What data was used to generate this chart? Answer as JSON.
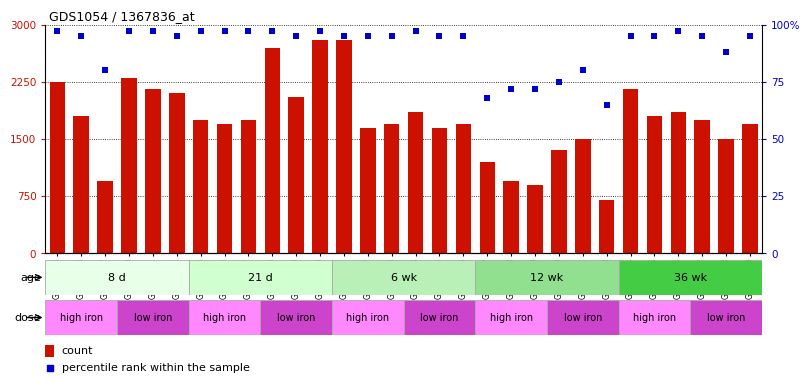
{
  "title": "GDS1054 / 1367836_at",
  "samples": [
    "GSM33513",
    "GSM33515",
    "GSM33517",
    "GSM33519",
    "GSM33521",
    "GSM33524",
    "GSM33525",
    "GSM33526",
    "GSM33527",
    "GSM33528",
    "GSM33529",
    "GSM33530",
    "GSM33531",
    "GSM33532",
    "GSM33533",
    "GSM33534",
    "GSM33535",
    "GSM33536",
    "GSM33537",
    "GSM33538",
    "GSM33539",
    "GSM33540",
    "GSM33541",
    "GSM33543",
    "GSM33544",
    "GSM33545",
    "GSM33546",
    "GSM33547",
    "GSM33548",
    "GSM33549"
  ],
  "counts": [
    2250,
    1800,
    950,
    2300,
    2150,
    2100,
    1750,
    1700,
    1750,
    2700,
    2050,
    2800,
    2800,
    1650,
    1700,
    1850,
    1650,
    1700,
    1200,
    950,
    900,
    1350,
    1500,
    700,
    2150,
    1800,
    1850,
    1750,
    1500,
    1700
  ],
  "percentiles": [
    97,
    95,
    80,
    97,
    97,
    95,
    97,
    97,
    97,
    97,
    95,
    97,
    95,
    95,
    95,
    97,
    95,
    95,
    68,
    72,
    72,
    75,
    80,
    65,
    95,
    95,
    97,
    95,
    88,
    95
  ],
  "age_groups": [
    {
      "label": "8 d",
      "start": 0,
      "end": 6
    },
    {
      "label": "21 d",
      "start": 6,
      "end": 12
    },
    {
      "label": "6 wk",
      "start": 12,
      "end": 18
    },
    {
      "label": "12 wk",
      "start": 18,
      "end": 24
    },
    {
      "label": "36 wk",
      "start": 24,
      "end": 30
    }
  ],
  "age_colors": [
    "#e8ffe8",
    "#d0ffd0",
    "#b8f0b8",
    "#90e090",
    "#44cc44"
  ],
  "dose_groups": [
    {
      "label": "high iron",
      "start": 0,
      "end": 3
    },
    {
      "label": "low iron",
      "start": 3,
      "end": 6
    },
    {
      "label": "high iron",
      "start": 6,
      "end": 9
    },
    {
      "label": "low iron",
      "start": 9,
      "end": 12
    },
    {
      "label": "high iron",
      "start": 12,
      "end": 15
    },
    {
      "label": "low iron",
      "start": 15,
      "end": 18
    },
    {
      "label": "high iron",
      "start": 18,
      "end": 21
    },
    {
      "label": "low iron",
      "start": 21,
      "end": 24
    },
    {
      "label": "high iron",
      "start": 24,
      "end": 27
    },
    {
      "label": "low iron",
      "start": 27,
      "end": 30
    }
  ],
  "dose_colors": [
    "#ff88ff",
    "#cc44cc"
  ],
  "bar_color": "#cc1100",
  "dot_color": "#0000cc",
  "ylim_left": [
    0,
    3000
  ],
  "ylim_right": [
    0,
    100
  ],
  "yticks_left": [
    0,
    750,
    1500,
    2250,
    3000
  ],
  "ytick_labels_left": [
    "0",
    "750",
    "1500",
    "2250",
    "3000"
  ],
  "yticks_right": [
    0,
    25,
    50,
    75,
    100
  ],
  "ytick_labels_right": [
    "0",
    "25",
    "50",
    "75",
    "100%"
  ]
}
